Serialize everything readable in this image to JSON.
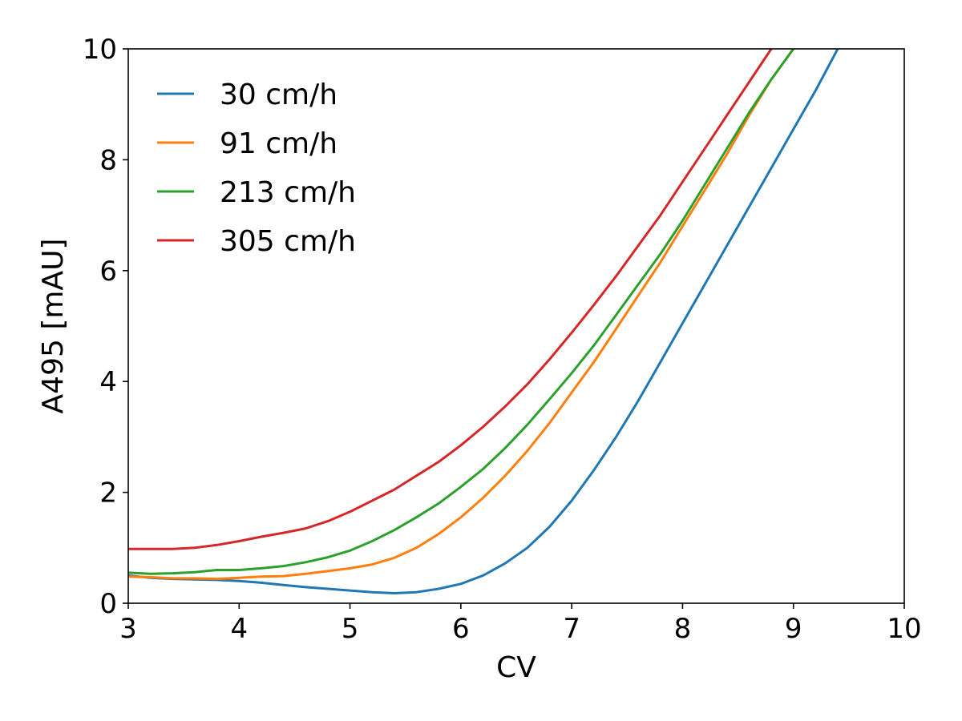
{
  "chart_data": {
    "type": "line",
    "xlabel": "CV",
    "ylabel": "A495 [mAU]",
    "xlim": [
      3,
      10
    ],
    "ylim": [
      0,
      10
    ],
    "xticks": [
      3,
      4,
      5,
      6,
      7,
      8,
      9,
      10
    ],
    "yticks": [
      0,
      2,
      4,
      6,
      8,
      10
    ],
    "grid": false,
    "legend_position": "upper-left",
    "series": [
      {
        "name": "30 cm/h",
        "color": "#1f77b4",
        "x": [
          3.0,
          3.2,
          3.4,
          3.6,
          3.8,
          4.0,
          4.2,
          4.4,
          4.6,
          4.8,
          5.0,
          5.2,
          5.4,
          5.6,
          5.8,
          6.0,
          6.2,
          6.4,
          6.6,
          6.8,
          7.0,
          7.2,
          7.4,
          7.6,
          7.8,
          8.0,
          8.2,
          8.4,
          8.6,
          8.8,
          9.0,
          9.2,
          9.4
        ],
        "y": [
          0.5,
          0.46,
          0.44,
          0.43,
          0.42,
          0.4,
          0.37,
          0.33,
          0.29,
          0.26,
          0.23,
          0.2,
          0.18,
          0.2,
          0.26,
          0.35,
          0.5,
          0.72,
          1.0,
          1.38,
          1.85,
          2.4,
          3.0,
          3.65,
          4.35,
          5.05,
          5.75,
          6.45,
          7.15,
          7.85,
          8.55,
          9.25,
          10.0
        ]
      },
      {
        "name": "91 cm/h",
        "color": "#ff7f0e",
        "x": [
          3.0,
          3.2,
          3.4,
          3.6,
          3.8,
          4.0,
          4.2,
          4.4,
          4.6,
          4.8,
          5.0,
          5.2,
          5.4,
          5.6,
          5.8,
          6.0,
          6.2,
          6.4,
          6.6,
          6.8,
          7.0,
          7.2,
          7.4,
          7.6,
          7.8,
          8.0,
          8.2,
          8.4,
          8.6,
          8.8,
          9.0
        ],
        "y": [
          0.48,
          0.47,
          0.45,
          0.45,
          0.44,
          0.46,
          0.48,
          0.49,
          0.53,
          0.58,
          0.63,
          0.7,
          0.82,
          1.0,
          1.25,
          1.55,
          1.9,
          2.3,
          2.75,
          3.25,
          3.8,
          4.35,
          4.95,
          5.55,
          6.15,
          6.8,
          7.45,
          8.1,
          8.8,
          9.45,
          10.0
        ]
      },
      {
        "name": "213 cm/h",
        "color": "#2ca02c",
        "x": [
          3.0,
          3.2,
          3.4,
          3.6,
          3.8,
          4.0,
          4.2,
          4.4,
          4.6,
          4.8,
          5.0,
          5.2,
          5.4,
          5.6,
          5.8,
          6.0,
          6.2,
          6.4,
          6.6,
          6.8,
          7.0,
          7.2,
          7.4,
          7.6,
          7.8,
          8.0,
          8.2,
          8.4,
          8.6,
          8.8,
          9.0
        ],
        "y": [
          0.55,
          0.53,
          0.54,
          0.56,
          0.6,
          0.6,
          0.63,
          0.67,
          0.74,
          0.83,
          0.95,
          1.12,
          1.32,
          1.55,
          1.8,
          2.1,
          2.42,
          2.8,
          3.22,
          3.68,
          4.15,
          4.65,
          5.2,
          5.75,
          6.3,
          6.9,
          7.55,
          8.2,
          8.85,
          9.45,
          10.0
        ]
      },
      {
        "name": "305 cm/h",
        "color": "#d62728",
        "x": [
          3.0,
          3.2,
          3.4,
          3.6,
          3.8,
          4.0,
          4.2,
          4.4,
          4.6,
          4.8,
          5.0,
          5.2,
          5.4,
          5.6,
          5.8,
          6.0,
          6.2,
          6.4,
          6.6,
          6.8,
          7.0,
          7.2,
          7.4,
          7.6,
          7.8,
          8.0,
          8.2,
          8.4,
          8.6,
          8.8,
          8.9
        ],
        "y": [
          0.98,
          0.98,
          0.98,
          1.0,
          1.05,
          1.12,
          1.2,
          1.27,
          1.35,
          1.48,
          1.65,
          1.85,
          2.05,
          2.3,
          2.55,
          2.85,
          3.18,
          3.55,
          3.95,
          4.4,
          4.88,
          5.38,
          5.9,
          6.45,
          7.0,
          7.6,
          8.2,
          8.8,
          9.4,
          10.0,
          10.3
        ]
      }
    ]
  }
}
